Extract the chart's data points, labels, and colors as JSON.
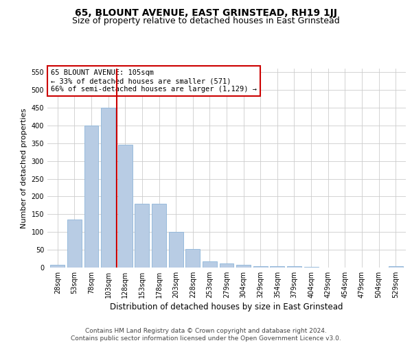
{
  "title": "65, BLOUNT AVENUE, EAST GRINSTEAD, RH19 1JJ",
  "subtitle": "Size of property relative to detached houses in East Grinstead",
  "xlabel": "Distribution of detached houses by size in East Grinstead",
  "ylabel": "Number of detached properties",
  "footer_line1": "Contains HM Land Registry data © Crown copyright and database right 2024.",
  "footer_line2": "Contains public sector information licensed under the Open Government Licence v3.0.",
  "categories": [
    "28sqm",
    "53sqm",
    "78sqm",
    "103sqm",
    "128sqm",
    "153sqm",
    "178sqm",
    "203sqm",
    "228sqm",
    "253sqm",
    "279sqm",
    "304sqm",
    "329sqm",
    "354sqm",
    "379sqm",
    "404sqm",
    "429sqm",
    "454sqm",
    "479sqm",
    "504sqm",
    "529sqm"
  ],
  "values": [
    8,
    135,
    400,
    450,
    345,
    180,
    180,
    100,
    52,
    17,
    12,
    8,
    4,
    3,
    3,
    2,
    0,
    0,
    0,
    0,
    3
  ],
  "bar_color": "#b8cce4",
  "bar_edgecolor": "#8db4d8",
  "grid_color": "#cccccc",
  "vline_x": 3.5,
  "vline_color": "#cc0000",
  "annotation_text": "65 BLOUNT AVENUE: 105sqm\n← 33% of detached houses are smaller (571)\n66% of semi-detached houses are larger (1,129) →",
  "annotation_box_edgecolor": "#cc0000",
  "annotation_box_facecolor": "#ffffff",
  "ylim": [
    0,
    560
  ],
  "yticks": [
    0,
    50,
    100,
    150,
    200,
    250,
    300,
    350,
    400,
    450,
    500,
    550
  ],
  "title_fontsize": 10,
  "subtitle_fontsize": 9,
  "xlabel_fontsize": 8.5,
  "ylabel_fontsize": 8,
  "tick_fontsize": 7,
  "annotation_fontsize": 7.5,
  "footer_fontsize": 6.5,
  "background_color": "#ffffff"
}
